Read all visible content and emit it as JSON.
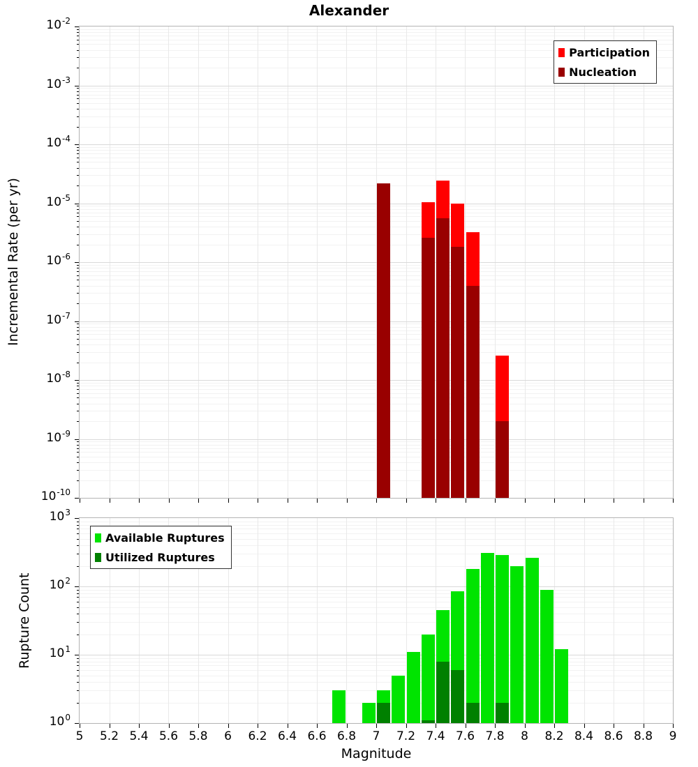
{
  "title": "Alexander",
  "chart_data": [
    {
      "type": "bar",
      "title": "Alexander",
      "xlabel": "",
      "ylabel": "Incremental Rate (per yr)",
      "x_range": [
        5,
        9
      ],
      "x_tick_step": 0.2,
      "y_scale": "log",
      "y_exp_range": [
        -10,
        -2
      ],
      "y_tick_exponents": [
        -2,
        -3,
        -4,
        -5,
        -6,
        -7,
        -8,
        -9,
        -10
      ],
      "bin_width": 0.1,
      "grid": true,
      "legend_position": "top-right",
      "series": [
        {
          "name": "Participation",
          "color": "#ff0000",
          "bars": [
            {
              "m": 7.0,
              "v": 2.2e-05
            },
            {
              "m": 7.3,
              "v": 1.05e-05
            },
            {
              "m": 7.4,
              "v": 2.4e-05
            },
            {
              "m": 7.5,
              "v": 1e-05
            },
            {
              "m": 7.6,
              "v": 3.2e-06
            },
            {
              "m": 7.8,
              "v": 2.6e-08
            }
          ]
        },
        {
          "name": "Nucleation",
          "color": "#990000",
          "bars": [
            {
              "m": 7.0,
              "v": 2.2e-05
            },
            {
              "m": 7.3,
              "v": 2.6e-06
            },
            {
              "m": 7.4,
              "v": 5.5e-06
            },
            {
              "m": 7.5,
              "v": 1.8e-06
            },
            {
              "m": 7.6,
              "v": 4e-07
            },
            {
              "m": 7.8,
              "v": 2e-09
            }
          ]
        }
      ]
    },
    {
      "type": "bar",
      "title": "",
      "xlabel": "Magnitude",
      "ylabel": "Rupture Count",
      "x_range": [
        5,
        9
      ],
      "x_tick_step": 0.2,
      "x_tick_labels": [
        "5",
        "5.2",
        "5.4",
        "5.6",
        "5.8",
        "6",
        "6.2",
        "6.4",
        "6.6",
        "6.8",
        "7",
        "7.2",
        "7.4",
        "7.6",
        "7.8",
        "8",
        "8.2",
        "8.4",
        "8.6",
        "8.8",
        "9"
      ],
      "y_scale": "log",
      "y_exp_range": [
        0,
        3
      ],
      "y_tick_exponents": [
        3,
        2,
        1,
        0
      ],
      "bin_width": 0.1,
      "grid": true,
      "legend_position": "top-left",
      "series": [
        {
          "name": "Available Ruptures",
          "color": "#00e400",
          "bars": [
            {
              "m": 6.7,
              "v": 3
            },
            {
              "m": 6.9,
              "v": 2
            },
            {
              "m": 7.0,
              "v": 3
            },
            {
              "m": 7.1,
              "v": 5
            },
            {
              "m": 7.2,
              "v": 11
            },
            {
              "m": 7.3,
              "v": 20
            },
            {
              "m": 7.4,
              "v": 45
            },
            {
              "m": 7.5,
              "v": 85
            },
            {
              "m": 7.6,
              "v": 180
            },
            {
              "m": 7.7,
              "v": 310
            },
            {
              "m": 7.8,
              "v": 290
            },
            {
              "m": 7.9,
              "v": 200
            },
            {
              "m": 8.0,
              "v": 260
            },
            {
              "m": 8.1,
              "v": 90
            },
            {
              "m": 8.2,
              "v": 12
            }
          ]
        },
        {
          "name": "Utilized Ruptures",
          "color": "#008000",
          "bars": [
            {
              "m": 7.0,
              "v": 2
            },
            {
              "m": 7.3,
              "v": 1
            },
            {
              "m": 7.4,
              "v": 8
            },
            {
              "m": 7.5,
              "v": 6
            },
            {
              "m": 7.6,
              "v": 2
            },
            {
              "m": 7.8,
              "v": 2
            }
          ]
        }
      ]
    }
  ]
}
